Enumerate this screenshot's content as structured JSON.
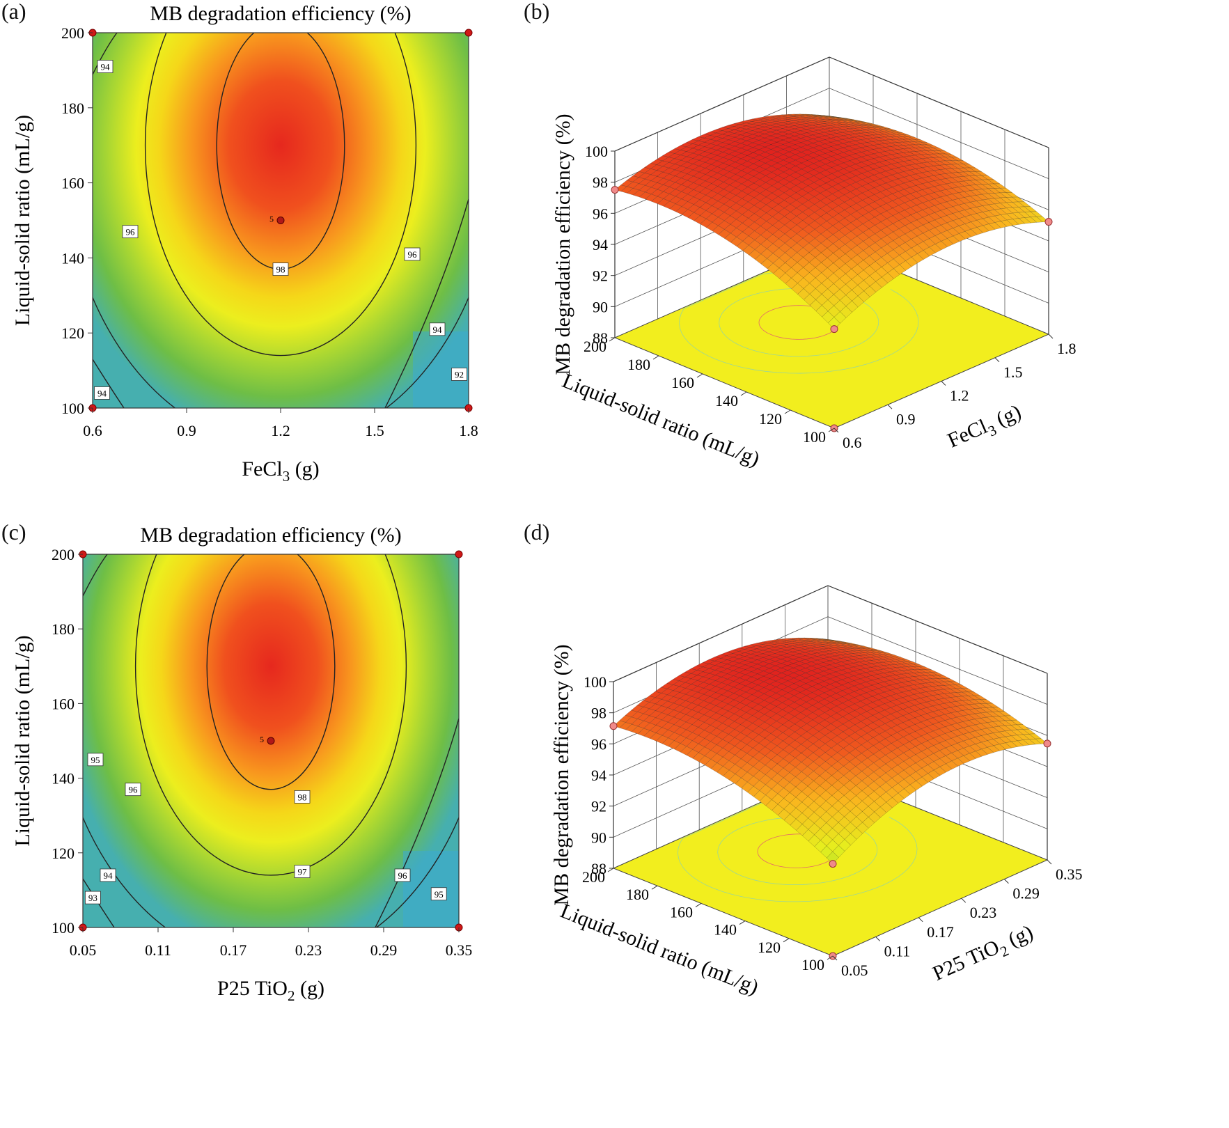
{
  "chart_data": [
    {
      "panel": "(a)",
      "type": "contour",
      "title": "MB degradation efficiency (%)",
      "xlabel_main": "FeCl",
      "xlabel_sub": "3",
      "xlabel_tail": " (g)",
      "ylabel": "Liquid-solid ratio (mL/g)",
      "xlim": [
        0.6,
        1.8
      ],
      "ylim": [
        100,
        200
      ],
      "xticks": [
        0.6,
        0.9,
        1.2,
        1.5,
        1.8
      ],
      "xtick_labels": [
        "0.6",
        "0.9",
        "1.2",
        "1.5",
        "1.8"
      ],
      "yticks": [
        100,
        120,
        140,
        160,
        180,
        200
      ],
      "ytick_labels": [
        "100",
        "120",
        "140",
        "160",
        "180",
        "200"
      ],
      "center": {
        "x": 1.2,
        "y": 150,
        "label": "5"
      },
      "corner_points": [
        [
          0.6,
          200
        ],
        [
          1.8,
          200
        ],
        [
          0.6,
          100
        ],
        [
          1.8,
          100
        ]
      ],
      "contour_labels": [
        {
          "text": "94",
          "x": 0.64,
          "y": 191
        },
        {
          "text": "96",
          "x": 0.72,
          "y": 147
        },
        {
          "text": "98",
          "x": 1.2,
          "y": 137
        },
        {
          "text": "96",
          "x": 1.62,
          "y": 141
        },
        {
          "text": "94",
          "x": 1.7,
          "y": 121
        },
        {
          "text": "92",
          "x": 1.77,
          "y": 109
        },
        {
          "text": "94",
          "x": 0.63,
          "y": 104
        }
      ]
    },
    {
      "panel": "(b)",
      "type": "surface3d",
      "zlabel": "MB degradation efficiency (%)",
      "zticks": [
        "88",
        "90",
        "92",
        "94",
        "96",
        "98",
        "100"
      ],
      "y_axis_label": "Liquid-solid ratio (mL/g)",
      "y_ticks": [
        "100",
        "120",
        "140",
        "160",
        "180",
        "200"
      ],
      "x_axis_main": "FeCl",
      "x_axis_sub": "3",
      "x_axis_tail": " (g)",
      "x_ticks": [
        "0.6",
        "0.9",
        "1.2",
        "1.5",
        "1.8"
      ]
    },
    {
      "panel": "(c)",
      "type": "contour",
      "title": "MB degradation efficiency (%)",
      "xlabel_main": "P25 TiO",
      "xlabel_sub": "2",
      "xlabel_tail": " (g)",
      "ylabel": "Liquid-solid ratio (mL/g)",
      "xlim": [
        0.05,
        0.35
      ],
      "ylim": [
        100,
        200
      ],
      "xticks": [
        0.05,
        0.11,
        0.17,
        0.23,
        0.29,
        0.35
      ],
      "xtick_labels": [
        "0.05",
        "0.11",
        "0.17",
        "0.23",
        "0.29",
        "0.35"
      ],
      "yticks": [
        100,
        120,
        140,
        160,
        180,
        200
      ],
      "ytick_labels": [
        "100",
        "120",
        "140",
        "160",
        "180",
        "200"
      ],
      "center": {
        "x": 0.2,
        "y": 150,
        "label": "5"
      },
      "corner_points": [
        [
          0.05,
          200
        ],
        [
          0.35,
          200
        ],
        [
          0.05,
          100
        ],
        [
          0.35,
          100
        ]
      ],
      "contour_labels": [
        {
          "text": "95",
          "x": 0.06,
          "y": 145
        },
        {
          "text": "96",
          "x": 0.09,
          "y": 137
        },
        {
          "text": "98",
          "x": 0.225,
          "y": 135
        },
        {
          "text": "97",
          "x": 0.225,
          "y": 115
        },
        {
          "text": "94",
          "x": 0.07,
          "y": 114
        },
        {
          "text": "93",
          "x": 0.058,
          "y": 108
        },
        {
          "text": "96",
          "x": 0.305,
          "y": 114
        },
        {
          "text": "95",
          "x": 0.334,
          "y": 109
        }
      ]
    },
    {
      "panel": "(d)",
      "type": "surface3d",
      "zlabel": "MB degradation efficiency (%)",
      "zticks": [
        "88",
        "90",
        "92",
        "94",
        "96",
        "98",
        "100"
      ],
      "y_axis_label": "Liquid-solid ratio (mL/g)",
      "y_ticks": [
        "100",
        "120",
        "140",
        "160",
        "180",
        "200"
      ],
      "x_axis_main": "P25 TiO",
      "x_axis_sub": "2",
      "x_axis_tail": " (g)",
      "x_ticks": [
        "0.05",
        "0.11",
        "0.17",
        "0.23",
        "0.29",
        "0.35"
      ]
    }
  ]
}
